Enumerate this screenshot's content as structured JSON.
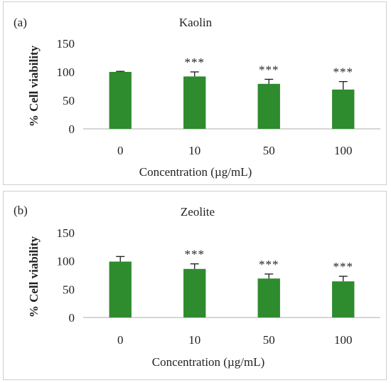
{
  "chart_data": [
    {
      "type": "bar",
      "panel_label": "(a)",
      "title": "Kaolin",
      "xlabel": "Concentration (µg/mL)",
      "ylabel": "% Cell viability",
      "categories": [
        "0",
        "10",
        "50",
        "100"
      ],
      "values": [
        100,
        92,
        79,
        69
      ],
      "errors": [
        1,
        8,
        8,
        14
      ],
      "annotations": [
        "",
        "***",
        "***",
        "***"
      ],
      "ylim": [
        0,
        150
      ],
      "yticks": [
        0,
        50,
        100,
        150
      ],
      "grid": false,
      "bar_color": "#2e8b2e"
    },
    {
      "type": "bar",
      "panel_label": "(b)",
      "title": "Zeolite",
      "xlabel": "Concentration (µg/mL)",
      "ylabel": "% Cell viability",
      "categories": [
        "0",
        "10",
        "50",
        "100"
      ],
      "values": [
        99,
        86,
        69,
        64
      ],
      "errors": [
        9,
        9,
        8,
        9
      ],
      "annotations": [
        "",
        "***",
        "***",
        "***"
      ],
      "ylim": [
        0,
        150
      ],
      "yticks": [
        0,
        50,
        100,
        150
      ],
      "grid": false,
      "bar_color": "#2e8b2e"
    }
  ]
}
